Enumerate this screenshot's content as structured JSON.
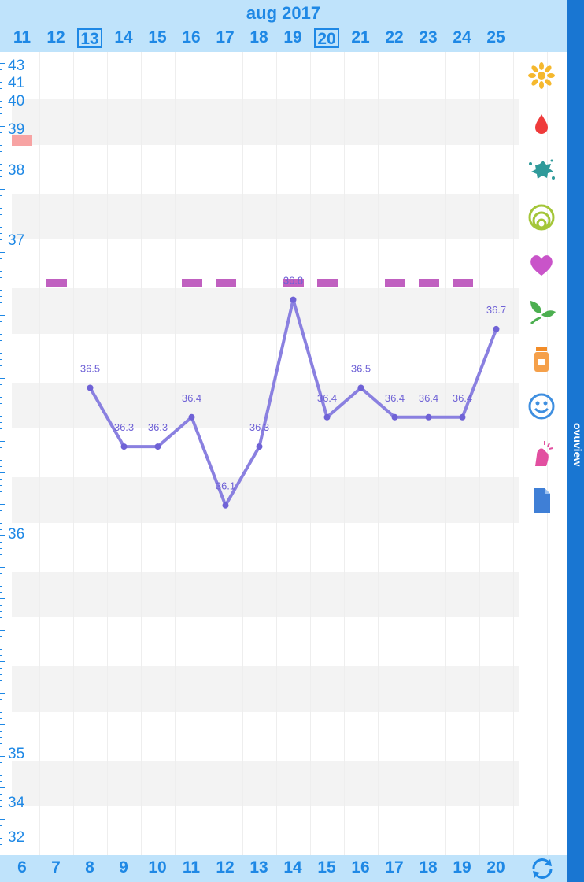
{
  "header": {
    "month_label": "aug 2017",
    "dates": [
      "11",
      "12",
      "13",
      "14",
      "15",
      "16",
      "17",
      "18",
      "19",
      "20",
      "21",
      "22",
      "23",
      "24",
      "25"
    ],
    "boxed_dates": [
      "13",
      "20"
    ]
  },
  "footer": {
    "cycle_days": [
      "6",
      "7",
      "8",
      "9",
      "10",
      "11",
      "12",
      "13",
      "14",
      "15",
      "16",
      "17",
      "18",
      "19",
      "20"
    ]
  },
  "yaxis": {
    "labels": [
      "43",
      "41",
      "40",
      "39",
      "38",
      "37",
      "36",
      "35",
      "34",
      "32"
    ]
  },
  "sidebar": {
    "label": "ovuview"
  },
  "icons": [
    "sun-icon",
    "drop-icon",
    "splash-icon",
    "rings-icon",
    "heart-icon",
    "leaf-icon",
    "pill-bottle-icon",
    "smiley-icon",
    "sparkle-hand-icon",
    "document-icon"
  ],
  "colors": {
    "accent": "#1e88e5",
    "line": "#8a80e0",
    "tag": "#c060c0"
  },
  "chart_data": {
    "type": "line",
    "x": [
      "13",
      "14",
      "15",
      "16",
      "17",
      "18",
      "19",
      "20",
      "21",
      "22",
      "23",
      "24",
      "25"
    ],
    "values": [
      36.5,
      36.3,
      36.3,
      36.4,
      36.1,
      36.3,
      36.8,
      36.4,
      36.5,
      36.4,
      36.4,
      36.4,
      36.7
    ],
    "labels": [
      "36.5",
      "36.3",
      "36.3",
      "36.4",
      "36.1",
      "36.3",
      "36.8",
      "36.4",
      "36.5",
      "36.4",
      "36.4",
      "36.4",
      "36.7"
    ]
  }
}
